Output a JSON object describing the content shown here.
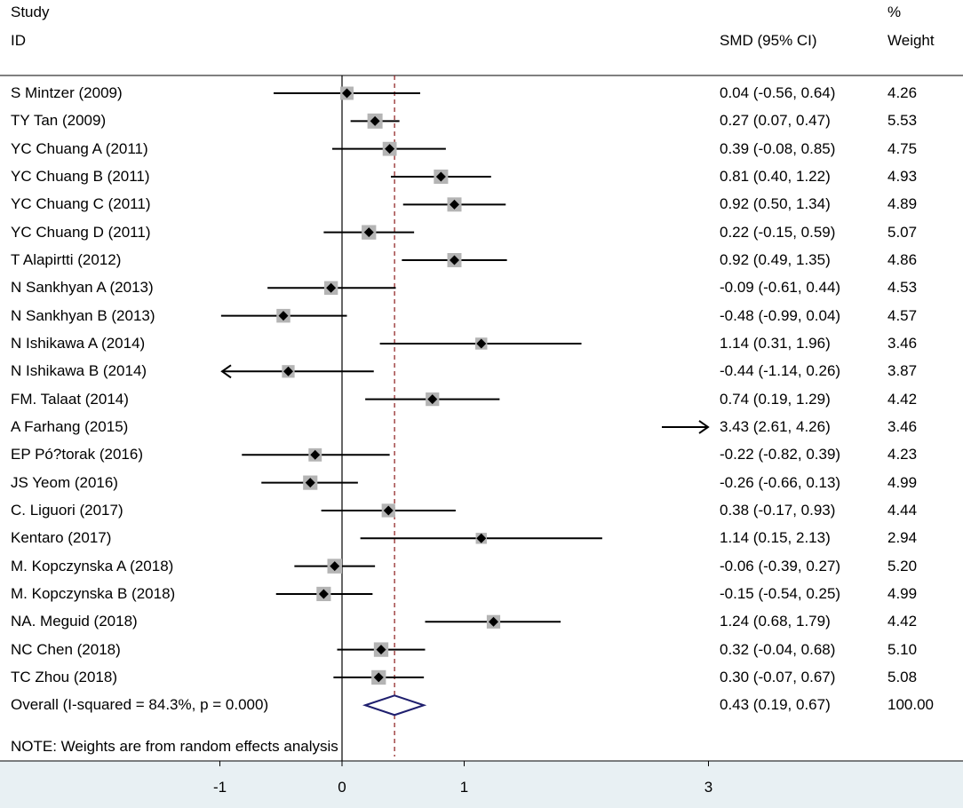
{
  "colors": {
    "band": "#e8f0f3",
    "refline": "#8b1a1a",
    "diamond": "#1f1f6e",
    "box": "#b4b4b4",
    "line": "#000000"
  },
  "header": {
    "study_line1": "Study",
    "study_line2": "ID",
    "smd_label": "SMD (95% CI)",
    "weight_line1": "%",
    "weight_line2": "Weight"
  },
  "note": "NOTE: Weights are from random effects analysis",
  "chart_data": {
    "type": "forest",
    "measure": "SMD (95% CI)",
    "null_value": 0,
    "pooled_reference": 0.43,
    "x_ticks": [
      -1,
      0,
      1,
      3
    ],
    "x_tick_labels": [
      "-1",
      "0",
      "1",
      "3"
    ],
    "studies": [
      {
        "label": "S Mintzer (2009)",
        "smd": 0.04,
        "lo": -0.56,
        "hi": 0.64,
        "ci_text": "0.04 (-0.56, 0.64)",
        "weight": "4.26"
      },
      {
        "label": "TY Tan (2009)",
        "smd": 0.27,
        "lo": 0.07,
        "hi": 0.47,
        "ci_text": "0.27 (0.07, 0.47)",
        "weight": "5.53"
      },
      {
        "label": "YC Chuang A (2011)",
        "smd": 0.39,
        "lo": -0.08,
        "hi": 0.85,
        "ci_text": "0.39 (-0.08, 0.85)",
        "weight": "4.75"
      },
      {
        "label": "YC Chuang B (2011)",
        "smd": 0.81,
        "lo": 0.4,
        "hi": 1.22,
        "ci_text": "0.81 (0.40, 1.22)",
        "weight": "4.93"
      },
      {
        "label": "YC Chuang C (2011)",
        "smd": 0.92,
        "lo": 0.5,
        "hi": 1.34,
        "ci_text": "0.92 (0.50, 1.34)",
        "weight": "4.89"
      },
      {
        "label": "YC Chuang D (2011)",
        "smd": 0.22,
        "lo": -0.15,
        "hi": 0.59,
        "ci_text": "0.22 (-0.15, 0.59)",
        "weight": "5.07"
      },
      {
        "label": "T Alapirtti (2012)",
        "smd": 0.92,
        "lo": 0.49,
        "hi": 1.35,
        "ci_text": "0.92 (0.49, 1.35)",
        "weight": "4.86"
      },
      {
        "label": "N Sankhyan A (2013)",
        "smd": -0.09,
        "lo": -0.61,
        "hi": 0.44,
        "ci_text": "-0.09 (-0.61, 0.44)",
        "weight": "4.53"
      },
      {
        "label": "N Sankhyan B (2013)",
        "smd": -0.48,
        "lo": -0.99,
        "hi": 0.04,
        "ci_text": "-0.48 (-0.99, 0.04)",
        "weight": "4.57"
      },
      {
        "label": "N Ishikawa A (2014)",
        "smd": 1.14,
        "lo": 0.31,
        "hi": 1.96,
        "ci_text": "1.14 (0.31, 1.96)",
        "weight": "3.46"
      },
      {
        "label": "N Ishikawa B (2014)",
        "smd": -0.44,
        "lo": -1.14,
        "hi": 0.26,
        "ci_text": "-0.44 (-1.14, 0.26)",
        "weight": "3.87",
        "arrow_left": true
      },
      {
        "label": "FM. Talaat (2014)",
        "smd": 0.74,
        "lo": 0.19,
        "hi": 1.29,
        "ci_text": "0.74 (0.19, 1.29)",
        "weight": "4.42"
      },
      {
        "label": "A Farhang (2015)",
        "smd": 3.43,
        "lo": 2.61,
        "hi": 4.26,
        "ci_text": "3.43 (2.61, 4.26)",
        "weight": "3.46",
        "arrow_right": true
      },
      {
        "label": "EP Pó?torak (2016)",
        "smd": -0.22,
        "lo": -0.82,
        "hi": 0.39,
        "ci_text": "-0.22 (-0.82, 0.39)",
        "weight": "4.23"
      },
      {
        "label": "JS Yeom (2016)",
        "smd": -0.26,
        "lo": -0.66,
        "hi": 0.13,
        "ci_text": "-0.26 (-0.66, 0.13)",
        "weight": "4.99"
      },
      {
        "label": "C. Liguori (2017)",
        "smd": 0.38,
        "lo": -0.17,
        "hi": 0.93,
        "ci_text": "0.38 (-0.17, 0.93)",
        "weight": "4.44"
      },
      {
        "label": "Kentaro (2017)",
        "smd": 1.14,
        "lo": 0.15,
        "hi": 2.13,
        "ci_text": "1.14 (0.15, 2.13)",
        "weight": "2.94"
      },
      {
        "label": "M. Kopczynska A (2018)",
        "smd": -0.06,
        "lo": -0.39,
        "hi": 0.27,
        "ci_text": "-0.06 (-0.39, 0.27)",
        "weight": "5.20"
      },
      {
        "label": "M. Kopczynska B (2018)",
        "smd": -0.15,
        "lo": -0.54,
        "hi": 0.25,
        "ci_text": "-0.15 (-0.54, 0.25)",
        "weight": "4.99"
      },
      {
        "label": "NA. Meguid (2018)",
        "smd": 1.24,
        "lo": 0.68,
        "hi": 1.79,
        "ci_text": "1.24 (0.68, 1.79)",
        "weight": "4.42"
      },
      {
        "label": "NC Chen (2018)",
        "smd": 0.32,
        "lo": -0.04,
        "hi": 0.68,
        "ci_text": "0.32 (-0.04, 0.68)",
        "weight": "5.10"
      },
      {
        "label": "TC Zhou (2018)",
        "smd": 0.3,
        "lo": -0.07,
        "hi": 0.67,
        "ci_text": "0.30 (-0.07, 0.67)",
        "weight": "5.08"
      }
    ],
    "overall": {
      "label": "Overall  (I-squared = 84.3%, p = 0.000)",
      "smd": 0.43,
      "lo": 0.19,
      "hi": 0.67,
      "ci_text": "0.43 (0.19, 0.67)",
      "weight": "100.00"
    }
  }
}
